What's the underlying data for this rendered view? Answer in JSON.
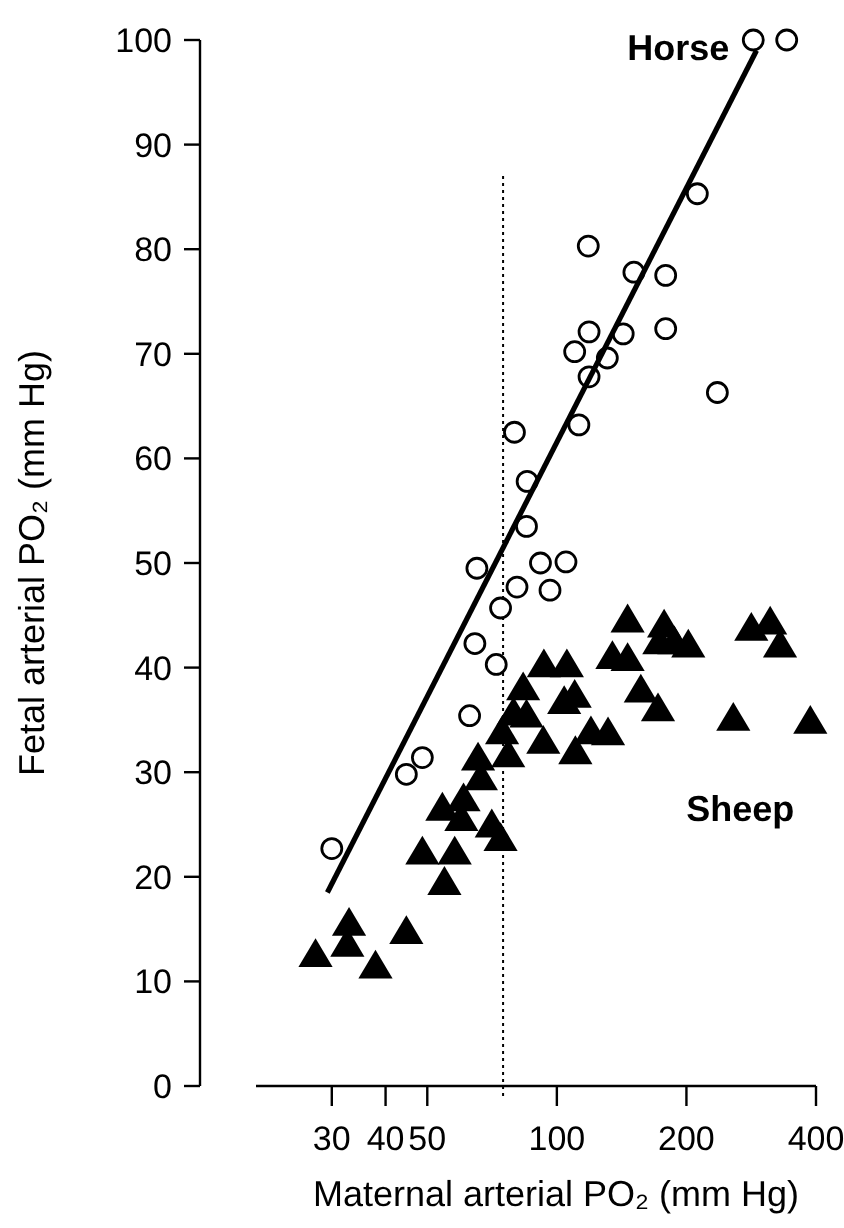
{
  "chart_data": {
    "type": "scatter",
    "xlabel": "Maternal arterial PO₂ (mm Hg)",
    "ylabel": "Fetal arterial PO₂ (mm Hg)",
    "log": "x",
    "xlim": [
      20,
      400
    ],
    "xticks": [
      30,
      40,
      50,
      100,
      200,
      400
    ],
    "ylim": [
      0,
      100
    ],
    "yticks": [
      0,
      10,
      20,
      30,
      40,
      50,
      60,
      70,
      80,
      90,
      100
    ],
    "grid": false,
    "series": [
      {
        "name": "Horse",
        "marker": "circle",
        "color": "#000000",
        "x": [
          30,
          44.7,
          48.7,
          62.7,
          64.5,
          72.3,
          74,
          80.8,
          96.4,
          91.6,
          105,
          65.2,
          85,
          85.3,
          79.7,
          112.5,
          118.8,
          110,
          118.8,
          131,
          142.6,
          179,
          151,
          179,
          118.3,
          212,
          236,
          286,
          342
        ],
        "values": [
          22.7,
          29.8,
          31.4,
          35.4,
          42.3,
          40.3,
          45.7,
          47.7,
          47.4,
          50,
          50.1,
          49.5,
          53.5,
          57.8,
          62.5,
          63.2,
          67.8,
          70.2,
          72.1,
          69.6,
          71.9,
          72.4,
          77.8,
          77.5,
          80.3,
          85.3,
          66.3,
          100,
          100
        ]
      },
      {
        "type": "line",
        "line_style": "solid",
        "color": "#000000",
        "x": [
          29.3,
          291
        ],
        "values": [
          18.5,
          99
        ]
      },
      {
        "name": "Sheep",
        "marker": "triangle",
        "color": "#000000",
        "x": [
          27.5,
          32.9,
          32.6,
          37.9,
          44.7,
          48.7,
          54.8,
          57.9,
          54.2,
          60.7,
          60,
          65.6,
          66.6,
          70.6,
          74,
          77.1,
          74.6,
          79.3,
          85,
          83.5,
          93,
          93.3,
          104,
          105.5,
          110.4,
          110,
          120,
          131.5,
          134.6,
          146,
          146,
          156.7,
          171.8,
          177.5,
          173,
          187.5,
          202,
          257,
          283,
          313,
          330,
          388
        ],
        "values": [
          12.4,
          15.4,
          13.4,
          11.3,
          14.6,
          22.2,
          19.3,
          22.2,
          26.4,
          27.3,
          25.4,
          31.2,
          29.3,
          24.8,
          23.5,
          31.5,
          33.7,
          35.5,
          35.3,
          37.9,
          32.8,
          40.1,
          36.6,
          40.1,
          31.8,
          37.2,
          33.7,
          33.6,
          40.9,
          44.4,
          40.7,
          37.7,
          35.9,
          43.9,
          42.3,
          42.3,
          42,
          35,
          43.6,
          44.2,
          42,
          34.7
        ]
      }
    ],
    "ref_lines": [
      {
        "axis": "x",
        "value": 75,
        "line_style": "dotted",
        "color": "#000000"
      }
    ]
  }
}
